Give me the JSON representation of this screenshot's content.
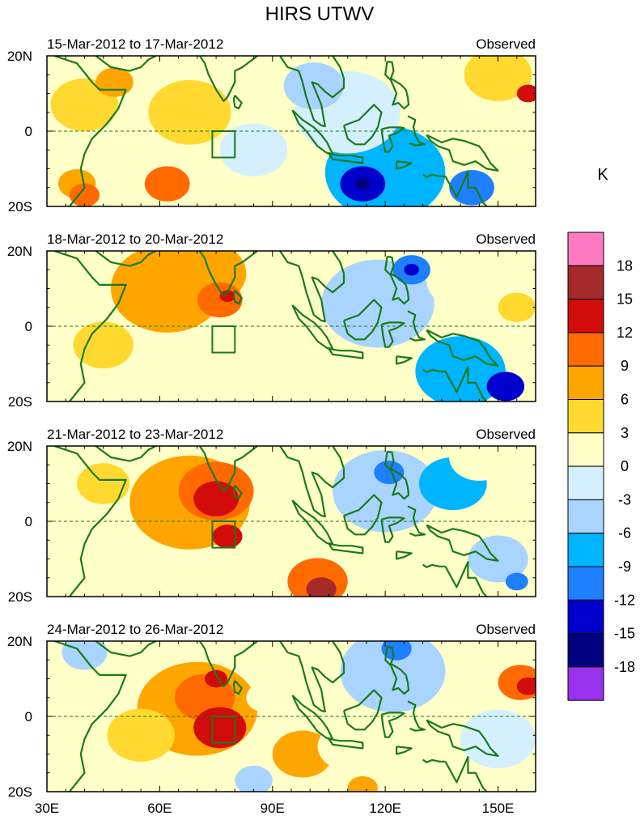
{
  "chart_data": {
    "type": "heatmap",
    "title": "HIRS UTWV",
    "units": "K",
    "x_range": [
      30,
      160
    ],
    "y_range": [
      -20,
      20
    ],
    "x_ticks": [
      {
        "value": 30,
        "label": "30E"
      },
      {
        "value": 60,
        "label": "60E"
      },
      {
        "value": 90,
        "label": "90E"
      },
      {
        "value": 120,
        "label": "120E"
      },
      {
        "value": 150,
        "label": "150E"
      }
    ],
    "y_ticks": [
      {
        "value": 20,
        "label": "20N"
      },
      {
        "value": 0,
        "label": "0"
      },
      {
        "value": -20,
        "label": "20S"
      }
    ],
    "box_region": {
      "lon": [
        74,
        80
      ],
      "lat": [
        -7,
        0
      ]
    },
    "colorbar": {
      "labels": [
        "18",
        "15",
        "12",
        "9",
        "6",
        "3",
        "0",
        "-3",
        "-6",
        "-9",
        "-12",
        "-15",
        "-18"
      ],
      "colors": [
        "#ff7ac2",
        "#a52a2a",
        "#d20b0b",
        "#ff6a00",
        "#ffa500",
        "#ffd92f",
        "#ffffc8",
        "#d4f0ff",
        "#a8d4ff",
        "#00b5ff",
        "#1e7fff",
        "#0000cd",
        "#000080",
        "#9932ee"
      ]
    },
    "panels": [
      {
        "period": "15-Mar-2012 to 17-Mar-2012",
        "label": "Observed",
        "features": [
          {
            "lon": 40,
            "lat": 7,
            "value": 3,
            "r": 9
          },
          {
            "lon": 48,
            "lat": 13,
            "value": 6,
            "r": 5
          },
          {
            "lon": 68,
            "lat": 5,
            "value": 3,
            "r": 11
          },
          {
            "lon": 82,
            "lat": 13,
            "value": 0,
            "r": 12
          },
          {
            "lon": 85,
            "lat": -5,
            "value": -3,
            "r": 9
          },
          {
            "lon": 62,
            "lat": -14,
            "value": 9,
            "r": 6
          },
          {
            "lon": 40,
            "lat": -17,
            "value": 9,
            "r": 4
          },
          {
            "lon": 38,
            "lat": -14,
            "value": 6,
            "r": 5
          },
          {
            "lon": 110,
            "lat": 5,
            "value": -3,
            "r": 14
          },
          {
            "lon": 101,
            "lat": 12,
            "value": -6,
            "r": 8
          },
          {
            "lon": 120,
            "lat": -11,
            "value": -9,
            "r": 16
          },
          {
            "lon": 114,
            "lat": -14,
            "value": -15,
            "r": 6
          },
          {
            "lon": 114,
            "lat": -14,
            "value": -18,
            "r": 2
          },
          {
            "lon": 143,
            "lat": -15,
            "value": -12,
            "r": 6
          },
          {
            "lon": 150,
            "lat": 15,
            "value": 3,
            "r": 9
          },
          {
            "lon": 158,
            "lat": 10,
            "value": 12,
            "r": 3
          },
          {
            "lon": 142,
            "lat": -2,
            "value": 0,
            "r": 6
          }
        ]
      },
      {
        "period": "18-Mar-2012 to 20-Mar-2012",
        "label": "Observed",
        "features": [
          {
            "lon": 62,
            "lat": 10,
            "value": 6,
            "r": 15
          },
          {
            "lon": 72,
            "lat": 14,
            "value": 6,
            "r": 11
          },
          {
            "lon": 76,
            "lat": 7,
            "value": 9,
            "r": 6
          },
          {
            "lon": 78,
            "lat": 8,
            "value": 12,
            "r": 2
          },
          {
            "lon": 45,
            "lat": -5,
            "value": 3,
            "r": 8
          },
          {
            "lon": 75,
            "lat": -13,
            "value": 0,
            "r": 8
          },
          {
            "lon": 118,
            "lat": 6,
            "value": -6,
            "r": 15
          },
          {
            "lon": 127,
            "lat": 15,
            "value": -12,
            "r": 5
          },
          {
            "lon": 127,
            "lat": 15,
            "value": -15,
            "r": 2
          },
          {
            "lon": 140,
            "lat": -12,
            "value": -9,
            "r": 12
          },
          {
            "lon": 152,
            "lat": -16,
            "value": -15,
            "r": 5
          },
          {
            "lon": 140,
            "lat": 12,
            "value": 0,
            "r": 9
          },
          {
            "lon": 155,
            "lat": 5,
            "value": 3,
            "r": 5
          }
        ]
      },
      {
        "period": "21-Mar-2012 to 23-Mar-2012",
        "label": "Observed",
        "features": [
          {
            "lon": 68,
            "lat": 5,
            "value": 6,
            "r": 16
          },
          {
            "lon": 75,
            "lat": 8,
            "value": 9,
            "r": 10
          },
          {
            "lon": 75,
            "lat": 6,
            "value": 12,
            "r": 6
          },
          {
            "lon": 78,
            "lat": -4,
            "value": 12,
            "r": 4
          },
          {
            "lon": 102,
            "lat": -16,
            "value": 9,
            "r": 8
          },
          {
            "lon": 103,
            "lat": -18,
            "value": 15,
            "r": 4
          },
          {
            "lon": 45,
            "lat": 10,
            "value": 3,
            "r": 7
          },
          {
            "lon": 120,
            "lat": 8,
            "value": -6,
            "r": 14
          },
          {
            "lon": 121,
            "lat": 13,
            "value": -12,
            "r": 4
          },
          {
            "lon": 138,
            "lat": 10,
            "value": -9,
            "r": 9
          },
          {
            "lon": 150,
            "lat": -10,
            "value": -6,
            "r": 8
          },
          {
            "lon": 155,
            "lat": -16,
            "value": -12,
            "r": 3
          },
          {
            "lon": 145,
            "lat": 17,
            "value": 0,
            "r": 8
          },
          {
            "lon": 55,
            "lat": -15,
            "value": 0,
            "r": 6
          }
        ]
      },
      {
        "period": "24-Mar-2012 to 26-Mar-2012",
        "label": "Observed",
        "features": [
          {
            "lon": 70,
            "lat": 2,
            "value": 6,
            "r": 16
          },
          {
            "lon": 76,
            "lat": -3,
            "value": 12,
            "r": 7
          },
          {
            "lon": 72,
            "lat": 5,
            "value": 9,
            "r": 8
          },
          {
            "lon": 75,
            "lat": 10,
            "value": 12,
            "r": 3
          },
          {
            "lon": 55,
            "lat": -5,
            "value": 3,
            "r": 9
          },
          {
            "lon": 98,
            "lat": -10,
            "value": 6,
            "r": 8
          },
          {
            "lon": 40,
            "lat": 17,
            "value": -6,
            "r": 6
          },
          {
            "lon": 122,
            "lat": 12,
            "value": -6,
            "r": 14
          },
          {
            "lon": 123,
            "lat": 18,
            "value": -12,
            "r": 4
          },
          {
            "lon": 110,
            "lat": -8,
            "value": 0,
            "r": 8
          },
          {
            "lon": 150,
            "lat": -6,
            "value": -3,
            "r": 10
          },
          {
            "lon": 156,
            "lat": 9,
            "value": 9,
            "r": 6
          },
          {
            "lon": 158,
            "lat": 8,
            "value": 12,
            "r": 3
          },
          {
            "lon": 88,
            "lat": 5,
            "value": 0,
            "r": 5
          },
          {
            "lon": 85,
            "lat": -17,
            "value": -6,
            "r": 5
          },
          {
            "lon": 114,
            "lat": -19,
            "value": 6,
            "r": 4
          }
        ]
      }
    ]
  }
}
